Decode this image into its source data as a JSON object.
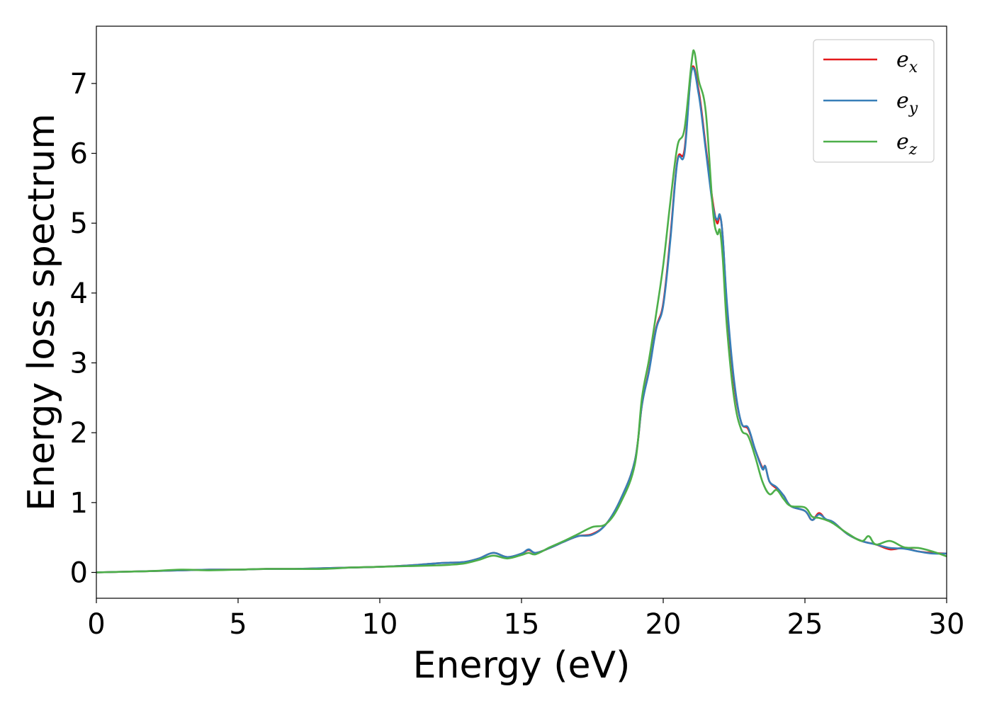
{
  "chart_data": {
    "type": "line",
    "title": "",
    "xlabel": "Energy (eV)",
    "ylabel": "Energy loss spectrum",
    "xlim": [
      0,
      30
    ],
    "ylim": [
      -0.37,
      7.82
    ],
    "xticks": [
      0,
      5,
      10,
      15,
      20,
      25,
      30
    ],
    "yticks": [
      0,
      1,
      2,
      3,
      4,
      5,
      6,
      7
    ],
    "grid": false,
    "legend_position": "top-right",
    "series": [
      {
        "name": "e_x",
        "legend_base": "e",
        "legend_sub": "x",
        "color": "#e41a1c",
        "x": [
          0,
          1,
          2,
          3,
          4,
          5,
          6,
          7,
          8,
          9,
          10,
          11,
          12,
          12.5,
          13,
          13.5,
          14,
          14.5,
          15,
          15.25,
          15.5,
          16,
          16.5,
          17,
          17.5,
          18,
          18.5,
          19,
          19.25,
          19.5,
          19.75,
          20,
          20.25,
          20.5,
          20.75,
          21,
          21.25,
          21.5,
          21.75,
          21.9,
          22,
          22.1,
          22.25,
          22.5,
          22.75,
          23,
          23.25,
          23.5,
          23.6,
          23.75,
          24,
          24.25,
          24.5,
          25,
          25.25,
          25.5,
          25.75,
          26,
          26.5,
          27,
          27.5,
          28,
          28.5,
          29,
          29.5,
          30
        ],
        "y": [
          0,
          0.01,
          0.02,
          0.03,
          0.04,
          0.04,
          0.05,
          0.05,
          0.06,
          0.07,
          0.08,
          0.1,
          0.13,
          0.14,
          0.15,
          0.2,
          0.28,
          0.22,
          0.27,
          0.32,
          0.28,
          0.35,
          0.44,
          0.52,
          0.55,
          0.7,
          1.05,
          1.6,
          2.4,
          2.9,
          3.5,
          3.85,
          4.8,
          5.9,
          6.05,
          7.2,
          6.9,
          6.1,
          5.3,
          5.0,
          5.1,
          4.8,
          3.8,
          2.7,
          2.15,
          2.05,
          1.75,
          1.5,
          1.52,
          1.3,
          1.2,
          1.1,
          0.95,
          0.88,
          0.75,
          0.85,
          0.75,
          0.72,
          0.55,
          0.45,
          0.4,
          0.33,
          0.35,
          0.3,
          0.28,
          0.27
        ]
      },
      {
        "name": "e_y",
        "legend_base": "e",
        "legend_sub": "y",
        "color": "#377eb8",
        "x": [
          0,
          1,
          2,
          3,
          4,
          5,
          6,
          7,
          8,
          9,
          10,
          11,
          12,
          12.5,
          13,
          13.5,
          14,
          14.5,
          15,
          15.25,
          15.5,
          16,
          16.5,
          17,
          17.5,
          18,
          18.5,
          19,
          19.25,
          19.5,
          19.75,
          20,
          20.25,
          20.5,
          20.75,
          21,
          21.25,
          21.5,
          21.75,
          21.9,
          22,
          22.1,
          22.25,
          22.5,
          22.75,
          23,
          23.25,
          23.5,
          23.6,
          23.75,
          24,
          24.25,
          24.5,
          25,
          25.25,
          25.5,
          25.75,
          26,
          26.5,
          27,
          27.5,
          28,
          28.5,
          29,
          29.5,
          30
        ],
        "y": [
          0,
          0.01,
          0.02,
          0.03,
          0.04,
          0.04,
          0.05,
          0.05,
          0.06,
          0.07,
          0.08,
          0.1,
          0.13,
          0.14,
          0.15,
          0.2,
          0.28,
          0.22,
          0.27,
          0.33,
          0.28,
          0.35,
          0.44,
          0.52,
          0.54,
          0.7,
          1.05,
          1.6,
          2.4,
          2.88,
          3.48,
          3.82,
          4.75,
          5.88,
          6.0,
          7.18,
          6.85,
          6.05,
          5.25,
          5.05,
          5.12,
          4.8,
          3.85,
          2.75,
          2.15,
          2.07,
          1.75,
          1.48,
          1.52,
          1.3,
          1.22,
          1.1,
          0.95,
          0.88,
          0.75,
          0.83,
          0.76,
          0.72,
          0.55,
          0.45,
          0.4,
          0.35,
          0.34,
          0.3,
          0.27,
          0.27
        ]
      },
      {
        "name": "e_z",
        "legend_base": "e",
        "legend_sub": "z",
        "color": "#4daf4a",
        "x": [
          0,
          1,
          2,
          3,
          4,
          5,
          6,
          7,
          8,
          9,
          10,
          11,
          12,
          12.5,
          13,
          13.5,
          14,
          14.5,
          15,
          15.25,
          15.5,
          16,
          16.5,
          17,
          17.5,
          18,
          18.5,
          19,
          19.25,
          19.5,
          19.75,
          20,
          20.25,
          20.5,
          20.75,
          21,
          21.1,
          21.25,
          21.5,
          21.75,
          21.9,
          22,
          22.1,
          22.25,
          22.5,
          22.75,
          23,
          23.25,
          23.5,
          23.75,
          24,
          24.25,
          24.5,
          25,
          25.25,
          25.5,
          25.75,
          26,
          26.5,
          27,
          27.25,
          27.5,
          28,
          28.5,
          29,
          29.5,
          30
        ],
        "y": [
          0,
          0.01,
          0.02,
          0.04,
          0.03,
          0.04,
          0.05,
          0.05,
          0.05,
          0.07,
          0.08,
          0.09,
          0.1,
          0.11,
          0.13,
          0.18,
          0.24,
          0.2,
          0.25,
          0.28,
          0.26,
          0.36,
          0.45,
          0.55,
          0.65,
          0.7,
          1.0,
          1.55,
          2.5,
          3.05,
          3.7,
          4.4,
          5.3,
          6.1,
          6.35,
          7.3,
          7.45,
          7.05,
          6.6,
          5.2,
          4.85,
          4.9,
          4.5,
          3.5,
          2.5,
          2.05,
          1.95,
          1.65,
          1.3,
          1.12,
          1.18,
          1.05,
          0.95,
          0.93,
          0.8,
          0.78,
          0.75,
          0.7,
          0.56,
          0.45,
          0.52,
          0.4,
          0.45,
          0.36,
          0.35,
          0.3,
          0.23
        ]
      }
    ]
  }
}
